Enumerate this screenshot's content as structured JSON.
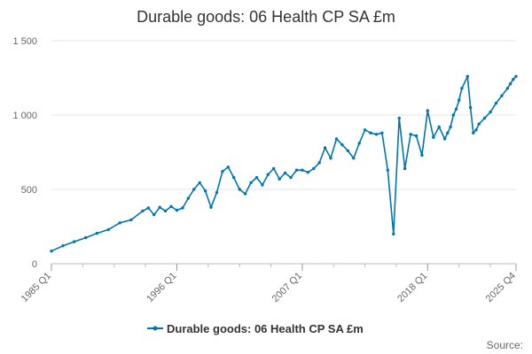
{
  "chart_data": {
    "type": "line",
    "title": "Durable goods: 06 Health CP SA £m",
    "xlabel": "",
    "ylabel": "",
    "ylim": [
      0,
      1500
    ],
    "yticks": [
      0,
      500,
      1000,
      1500
    ],
    "ytick_labels": [
      "0",
      "500",
      "1 000",
      "1 500"
    ],
    "xticks": [
      {
        "value": 1985.0,
        "label": "1985 Q1"
      },
      {
        "value": 1996.0,
        "label": "1996 Q1"
      },
      {
        "value": 2007.0,
        "label": "2007 Q1"
      },
      {
        "value": 2018.0,
        "label": "2018 Q1"
      },
      {
        "value": 2025.75,
        "label": "2025 Q4"
      }
    ],
    "legend": {
      "position": "bottom",
      "entries": [
        "Durable goods: 06 Health CP SA £m"
      ]
    },
    "grid": "horizontal",
    "color": "#0075b0",
    "series": [
      {
        "name": "Durable goods: 06 Health CP SA £m",
        "x": [
          1985.0,
          1986.0,
          1987.0,
          1988.0,
          1989.0,
          1990.0,
          1991.0,
          1992.0,
          1993.0,
          1993.5,
          1994.0,
          1994.5,
          1995.0,
          1995.5,
          1996.0,
          1996.5,
          1997.0,
          1997.5,
          1998.0,
          1998.5,
          1999.0,
          1999.5,
          2000.0,
          2000.5,
          2001.0,
          2001.5,
          2002.0,
          2002.5,
          2003.0,
          2003.5,
          2004.0,
          2004.5,
          2005.0,
          2005.5,
          2006.0,
          2006.5,
          2007.0,
          2007.5,
          2008.0,
          2008.5,
          2009.0,
          2009.5,
          2010.0,
          2010.5,
          2011.0,
          2011.5,
          2012.0,
          2012.5,
          2013.0,
          2013.5,
          2014.0,
          2014.5,
          2015.0,
          2015.5,
          2016.0,
          2016.5,
          2017.0,
          2017.5,
          2018.0,
          2018.5,
          2019.0,
          2019.5,
          2019.75,
          2020.0,
          2020.25,
          2020.5,
          2020.75,
          2021.0,
          2021.5,
          2021.75,
          2022.0,
          2022.25,
          2022.5,
          2023.0,
          2023.5,
          2024.0,
          2024.5,
          2025.0,
          2025.25,
          2025.5,
          2025.75
        ],
        "values": [
          85,
          120,
          148,
          175,
          205,
          230,
          275,
          295,
          355,
          375,
          330,
          380,
          355,
          385,
          360,
          375,
          440,
          500,
          545,
          490,
          380,
          480,
          620,
          650,
          580,
          500,
          470,
          545,
          580,
          530,
          600,
          640,
          570,
          610,
          580,
          630,
          630,
          615,
          640,
          680,
          780,
          710,
          840,
          800,
          760,
          710,
          810,
          900,
          880,
          870,
          880,
          630,
          200,
          980,
          640,
          870,
          860,
          730,
          1030,
          850,
          920,
          840,
          880,
          920,
          1000,
          1040,
          1100,
          1180,
          1260,
          1050,
          880,
          900,
          940,
          980,
          1020,
          1080,
          1130,
          1180,
          1210,
          1240,
          1260
        ]
      }
    ],
    "source_label": "Source:"
  }
}
